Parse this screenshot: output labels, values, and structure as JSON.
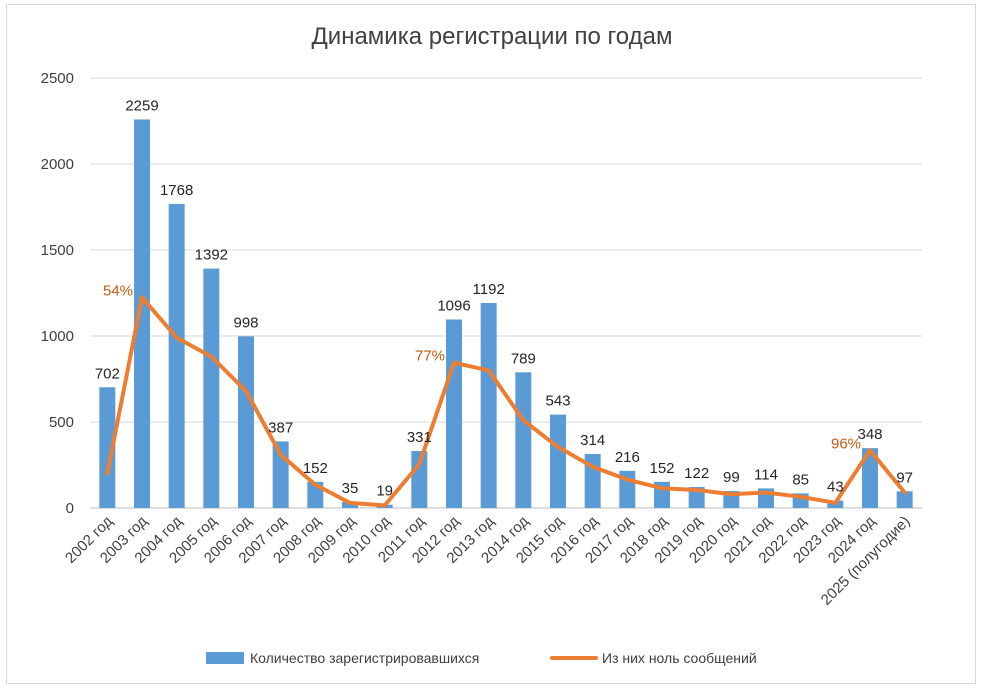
{
  "chart_data": {
    "type": "bar",
    "title": "Динамика регистрации по годам",
    "categories": [
      "2002 год",
      "2003 год",
      "2004 год",
      "2005 год",
      "2006 год",
      "2007 год",
      "2008 год",
      "2009 год",
      "2010 год",
      "2011 год",
      "2012 год",
      "2013 год",
      "2014 год",
      "2015 год",
      "2016 год",
      "2017 год",
      "2018 год",
      "2019 год",
      "2020 год",
      "2021 год",
      "2022 год",
      "2023 год",
      "2024 год",
      "2025 (полугодие)"
    ],
    "series": [
      {
        "name": "Количество зарегистрировавшихся",
        "type": "bar",
        "color": "#5b9bd5",
        "values": [
          702,
          2259,
          1768,
          1392,
          998,
          387,
          152,
          35,
          19,
          331,
          1096,
          1192,
          789,
          543,
          314,
          216,
          152,
          122,
          99,
          114,
          85,
          43,
          348,
          97
        ],
        "labels": [
          "702",
          "2259",
          "1768",
          "1392",
          "998",
          "387",
          "152",
          "35",
          "19",
          "331",
          "1096",
          "1192",
          "789",
          "543",
          "314",
          "216",
          "152",
          "122",
          "99",
          "114",
          "85",
          "43",
          "348",
          "97"
        ]
      },
      {
        "name": "Из них ноль сообщений",
        "type": "line",
        "color": "#ed7d31",
        "values": [
          200,
          1225,
          990,
          880,
          680,
          310,
          135,
          30,
          15,
          255,
          845,
          800,
          510,
          355,
          240,
          165,
          115,
          105,
          80,
          90,
          65,
          30,
          335,
          90
        ]
      }
    ],
    "annotations": [
      {
        "index": 1,
        "text": "54%"
      },
      {
        "index": 10,
        "text": "77%"
      },
      {
        "index": 22,
        "text": "96%"
      }
    ],
    "yticks": [
      "0",
      "500",
      "1000",
      "1500",
      "2000",
      "2500"
    ],
    "ylim": [
      0,
      2500
    ],
    "grid": true,
    "legend": "bottom",
    "xlabel": "",
    "ylabel": ""
  }
}
